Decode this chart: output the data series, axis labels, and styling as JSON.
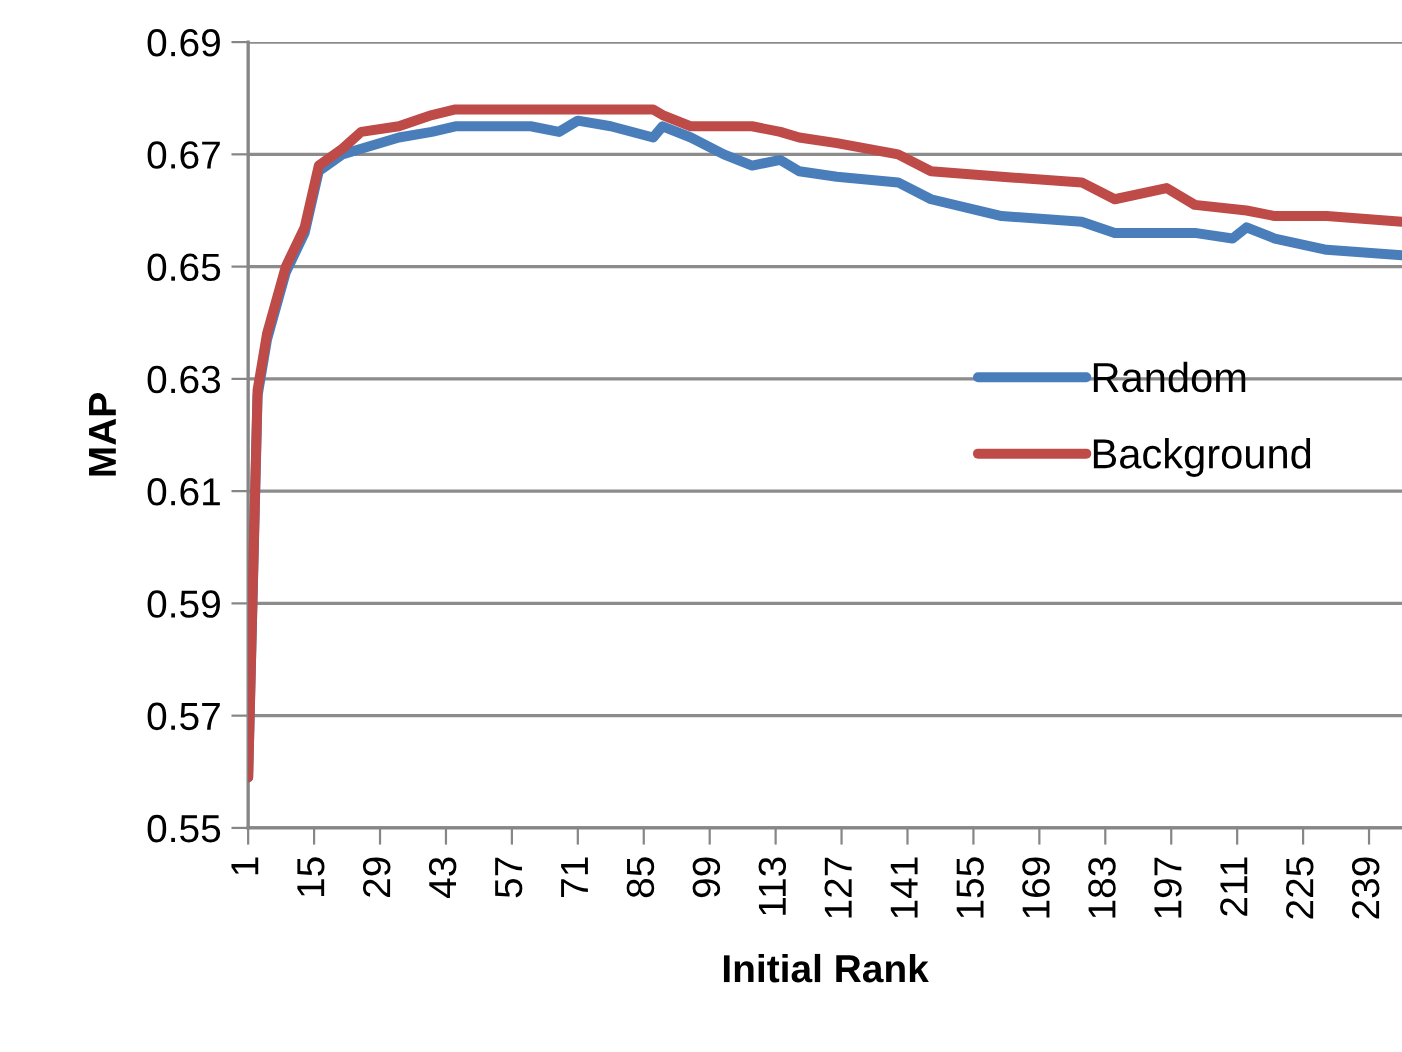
{
  "chart_data": {
    "type": "line",
    "xlabel": "Initial Rank",
    "ylabel": "MAP",
    "xlim": [
      1,
      246
    ],
    "xticks": [
      1,
      15,
      29,
      43,
      57,
      71,
      85,
      99,
      113,
      127,
      141,
      155,
      169,
      183,
      197,
      211,
      225,
      239
    ],
    "ylim": [
      0.55,
      0.69
    ],
    "yticks": [
      0.55,
      0.57,
      0.59,
      0.61,
      0.63,
      0.65,
      0.67,
      0.69
    ],
    "grid": "y",
    "legend": "right",
    "marker": "none",
    "line_style": "solid",
    "series": [
      {
        "name": "Random",
        "color": "#4a7ebb",
        "x": [
          1,
          3,
          5,
          9,
          13,
          16,
          21,
          25,
          33,
          40,
          45,
          54,
          61,
          67,
          71,
          78,
          87,
          89,
          95,
          102,
          108,
          114,
          118,
          126,
          139,
          146,
          161,
          178,
          185,
          196,
          202,
          210,
          213,
          219,
          230,
          246
        ],
        "values": [
          0.559,
          0.627,
          0.637,
          0.649,
          0.656,
          0.667,
          0.67,
          0.671,
          0.673,
          0.674,
          0.675,
          0.675,
          0.675,
          0.674,
          0.676,
          0.675,
          0.673,
          0.675,
          0.673,
          0.67,
          0.668,
          0.669,
          0.667,
          0.666,
          0.665,
          0.662,
          0.659,
          0.658,
          0.656,
          0.656,
          0.656,
          0.655,
          0.657,
          0.655,
          0.653,
          0.652
        ]
      },
      {
        "name": "Background",
        "color": "#be4b48",
        "x": [
          1,
          3,
          5,
          9,
          13,
          16,
          21,
          25,
          33,
          40,
          45,
          54,
          61,
          67,
          71,
          78,
          87,
          89,
          95,
          102,
          108,
          114,
          118,
          126,
          139,
          146,
          161,
          178,
          185,
          196,
          202,
          213,
          219,
          230,
          246
        ],
        "values": [
          0.559,
          0.628,
          0.638,
          0.65,
          0.657,
          0.668,
          0.671,
          0.674,
          0.675,
          0.677,
          0.678,
          0.678,
          0.678,
          0.678,
          0.678,
          0.678,
          0.678,
          0.677,
          0.675,
          0.675,
          0.675,
          0.674,
          0.673,
          0.672,
          0.67,
          0.667,
          0.666,
          0.665,
          0.662,
          0.664,
          0.661,
          0.66,
          0.659,
          0.659,
          0.658
        ]
      }
    ]
  }
}
